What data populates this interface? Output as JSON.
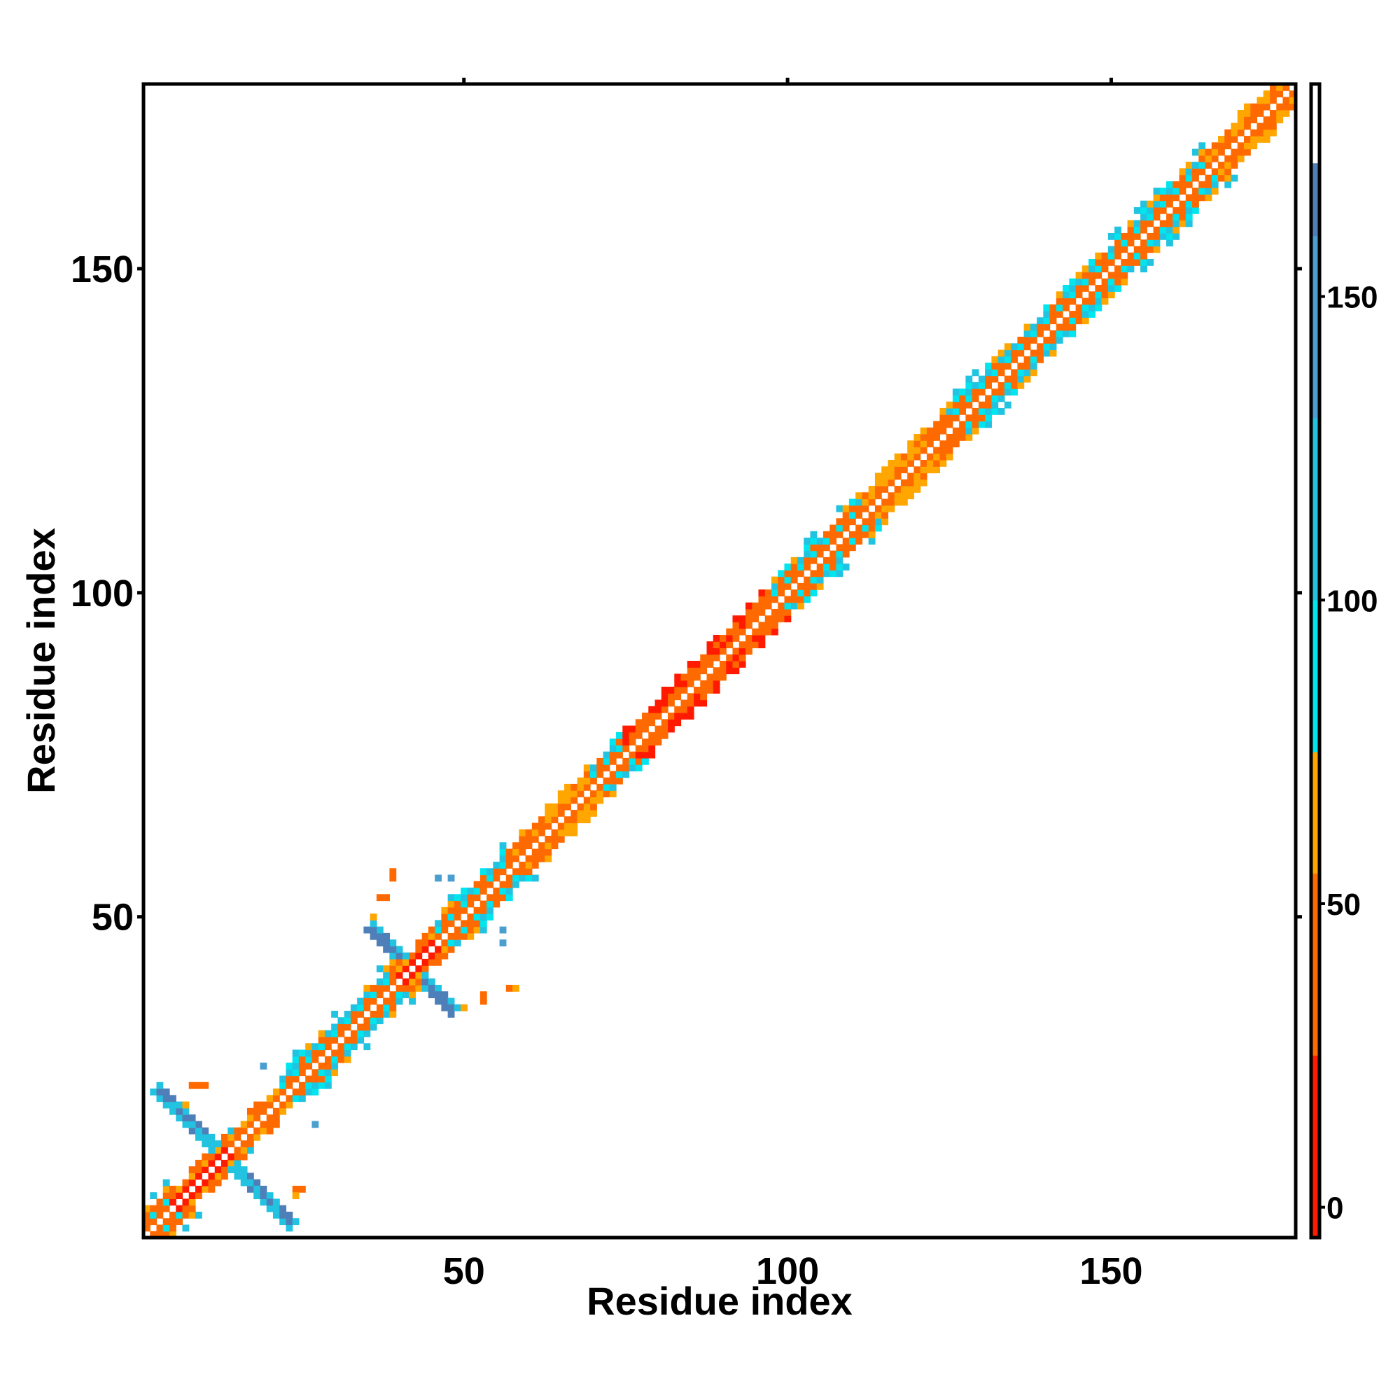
{
  "chart_data": {
    "type": "heatmap",
    "title": "",
    "xlabel": "Residue index",
    "ylabel": "Residue index",
    "xlim": [
      1,
      178
    ],
    "ylim": [
      1,
      178
    ],
    "x_ticks": [
      50,
      100,
      150
    ],
    "y_ticks": [
      50,
      100,
      150
    ],
    "colorbar": {
      "range": [
        -5,
        185
      ],
      "ticks": [
        0,
        50,
        100,
        150
      ],
      "bins": [
        {
          "from": -5,
          "to": 25,
          "color": "#ff1a00"
        },
        {
          "from": 25,
          "to": 55,
          "color": "#ff6a00"
        },
        {
          "from": 55,
          "to": 75,
          "color": "#ffa600"
        },
        {
          "from": 75,
          "to": 100,
          "color": "#00e5ee"
        },
        {
          "from": 100,
          "to": 130,
          "color": "#22c3e0"
        },
        {
          "from": 130,
          "to": 160,
          "color": "#4a9fd0"
        },
        {
          "from": 160,
          "to": 172,
          "color": "#4f7fb8"
        },
        {
          "from": 172,
          "to": 185,
          "color": "#ffffff"
        }
      ]
    },
    "colors": {
      "red": "#ff1a00",
      "orange": "#ff6a00",
      "amber": "#ffa600",
      "cyan": "#00e5ee",
      "sky": "#22c3e0",
      "steel": "#4a9fd0",
      "slate": "#4f7fb8",
      "background": "#ffffff"
    },
    "diagonal_segments": [
      {
        "from": 1,
        "to": 5,
        "class": "beta"
      },
      {
        "from": 5,
        "to": 14,
        "class": "mixed-red"
      },
      {
        "from": 14,
        "to": 22,
        "class": "mixed"
      },
      {
        "from": 22,
        "to": 32,
        "class": "beta"
      },
      {
        "from": 32,
        "to": 40,
        "class": "beta"
      },
      {
        "from": 40,
        "to": 46,
        "class": "mixed-red"
      },
      {
        "from": 46,
        "to": 58,
        "class": "beta"
      },
      {
        "from": 58,
        "to": 70,
        "class": "helix"
      },
      {
        "from": 70,
        "to": 75,
        "class": "beta"
      },
      {
        "from": 75,
        "to": 98,
        "class": "helix-red"
      },
      {
        "from": 98,
        "to": 112,
        "class": "beta"
      },
      {
        "from": 112,
        "to": 125,
        "class": "helix"
      },
      {
        "from": 125,
        "to": 147,
        "class": "beta"
      },
      {
        "from": 147,
        "to": 165,
        "class": "beta"
      },
      {
        "from": 165,
        "to": 178,
        "class": "helix"
      }
    ],
    "crossings": [
      {
        "center": 13,
        "arm": 10,
        "color": "slate",
        "halo": "sky"
      },
      {
        "center": 42,
        "arm": 6,
        "color": "slate",
        "halo": "sky"
      }
    ],
    "scatter_dots": [
      {
        "x": 8,
        "y": 24,
        "color": "orange"
      },
      {
        "x": 9,
        "y": 24,
        "color": "orange"
      },
      {
        "x": 10,
        "y": 24,
        "color": "orange"
      },
      {
        "x": 7,
        "y": 21,
        "color": "amber"
      },
      {
        "x": 24,
        "y": 8,
        "color": "orange"
      },
      {
        "x": 25,
        "y": 8,
        "color": "orange"
      },
      {
        "x": 24,
        "y": 7,
        "color": "amber"
      },
      {
        "x": 19,
        "y": 27,
        "color": "steel"
      },
      {
        "x": 27,
        "y": 18,
        "color": "steel"
      },
      {
        "x": 39,
        "y": 57,
        "color": "orange"
      },
      {
        "x": 39,
        "y": 56,
        "color": "orange"
      },
      {
        "x": 37,
        "y": 53,
        "color": "orange"
      },
      {
        "x": 38,
        "y": 53,
        "color": "orange"
      },
      {
        "x": 36,
        "y": 50,
        "color": "amber"
      },
      {
        "x": 46,
        "y": 56,
        "color": "steel"
      },
      {
        "x": 48,
        "y": 56,
        "color": "steel"
      },
      {
        "x": 57,
        "y": 39,
        "color": "orange"
      },
      {
        "x": 58,
        "y": 39,
        "color": "amber"
      },
      {
        "x": 53,
        "y": 37,
        "color": "orange"
      },
      {
        "x": 53,
        "y": 38,
        "color": "orange"
      },
      {
        "x": 50,
        "y": 36,
        "color": "amber"
      },
      {
        "x": 56,
        "y": 46,
        "color": "steel"
      },
      {
        "x": 56,
        "y": 48,
        "color": "steel"
      }
    ]
  }
}
